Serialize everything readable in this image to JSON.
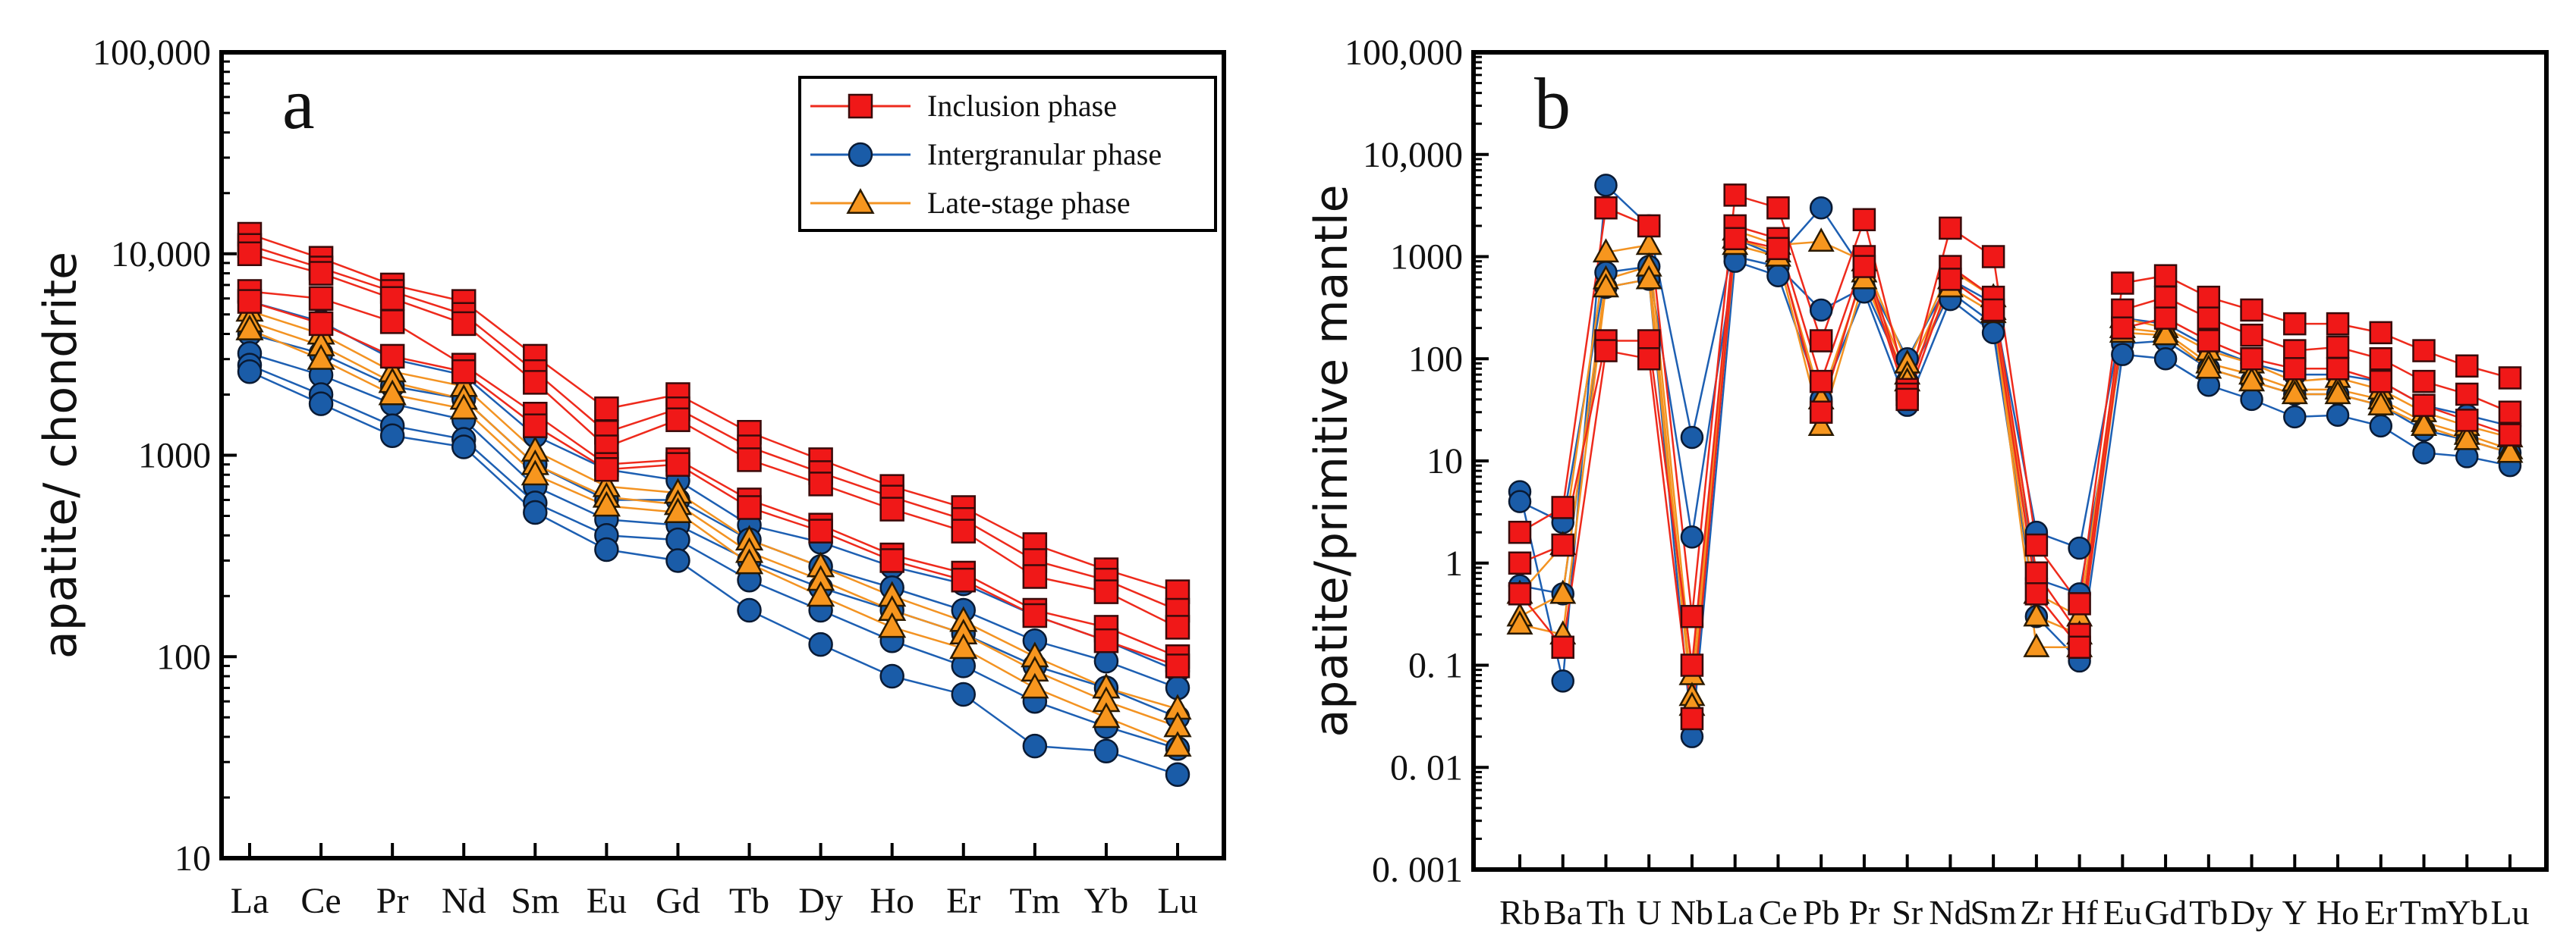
{
  "colors": {
    "inclusion": "#ee2a1c",
    "intergranular": "#1d5fb2",
    "late": "#f39322",
    "axis": "#000000"
  },
  "chart_data": [
    {
      "type": "line",
      "panel_label": "a",
      "title": "",
      "xlabel": "",
      "ylabel": "apatite/ chondrite",
      "yscale": "log",
      "ylim": [
        10,
        100000
      ],
      "yticks": [
        10,
        100,
        1000,
        10000,
        100000
      ],
      "ytick_labels": [
        "10",
        "100",
        "1000",
        "10,000",
        "100,000"
      ],
      "categories": [
        "La",
        "Ce",
        "Pr",
        "Nd",
        "Sm",
        "Eu",
        "Gd",
        "Tb",
        "Dy",
        "Ho",
        "Er",
        "Tm",
        "Yb",
        "Lu"
      ],
      "legend_position": "top-right",
      "legend": [
        {
          "group": "inclusion",
          "label": "Inclusion phase",
          "marker": "square"
        },
        {
          "group": "intergranular",
          "label": "Intergranular phase",
          "marker": "circle"
        },
        {
          "group": "late",
          "label": "Late-stage phase",
          "marker": "triangle"
        }
      ],
      "series": [
        {
          "group": "intergranular",
          "values": [
            5800,
            4600,
            3000,
            2500,
            1250,
            850,
            750,
            450,
            370,
            280,
            230,
            160,
            120,
            85
          ]
        },
        {
          "group": "intergranular",
          "values": [
            4000,
            3200,
            2200,
            1900,
            900,
            600,
            600,
            380,
            280,
            220,
            170,
            120,
            95,
            70
          ]
        },
        {
          "group": "intergranular",
          "values": [
            3200,
            2500,
            1800,
            1500,
            700,
            480,
            450,
            300,
            220,
            170,
            130,
            90,
            70,
            50
          ]
        },
        {
          "group": "intergranular",
          "values": [
            2800,
            2000,
            1400,
            1200,
            580,
            400,
            380,
            240,
            170,
            120,
            90,
            60,
            45,
            35
          ]
        },
        {
          "group": "intergranular",
          "values": [
            2600,
            1800,
            1250,
            1100,
            520,
            340,
            300,
            170,
            115,
            80,
            65,
            36,
            34,
            26
          ]
        },
        {
          "group": "late",
          "values": [
            5200,
            4000,
            2600,
            2200,
            1050,
            700,
            650,
            380,
            280,
            200,
            150,
            100,
            70,
            55
          ]
        },
        {
          "group": "late",
          "values": [
            4600,
            3500,
            2300,
            1900,
            900,
            620,
            570,
            330,
            240,
            170,
            130,
            85,
            60,
            45
          ]
        },
        {
          "group": "late",
          "values": [
            4200,
            3000,
            2000,
            1700,
            800,
            560,
            520,
            290,
            200,
            140,
            110,
            70,
            50,
            36
          ]
        },
        {
          "group": "inclusion",
          "values": [
            12500,
            9500,
            7000,
            5800,
            3100,
            1700,
            2000,
            1300,
            950,
            700,
            550,
            360,
            270,
            210
          ]
        },
        {
          "group": "inclusion",
          "values": [
            11000,
            8500,
            6500,
            5000,
            2600,
            1300,
            1700,
            1100,
            820,
            620,
            480,
            300,
            240,
            170
          ]
        },
        {
          "group": "inclusion",
          "values": [
            10000,
            8000,
            6000,
            4500,
            2300,
            1100,
            1500,
            950,
            720,
            540,
            420,
            250,
            210,
            140
          ]
        },
        {
          "group": "inclusion",
          "values": [
            6500,
            6000,
            4600,
            2800,
            1600,
            900,
            950,
            600,
            450,
            320,
            260,
            170,
            140,
            100
          ]
        },
        {
          "group": "inclusion",
          "values": [
            5800,
            4500,
            3100,
            2600,
            1400,
            850,
            900,
            550,
            420,
            300,
            240,
            160,
            120,
            90
          ]
        }
      ]
    },
    {
      "type": "line",
      "panel_label": "b",
      "title": "",
      "xlabel": "",
      "ylabel": "apatite/primitive mantle",
      "yscale": "log",
      "ylim": [
        0.001,
        100000
      ],
      "yticks": [
        0.001,
        0.01,
        0.1,
        1,
        10,
        100,
        1000,
        10000,
        100000
      ],
      "ytick_labels": [
        "0. 001",
        "0. 01",
        "0. 1",
        "1",
        "10",
        "100",
        "1000",
        "10,000",
        "100,000"
      ],
      "categories": [
        "Rb",
        "Ba",
        "Th",
        "U",
        "Nb",
        "La",
        "Ce",
        "Pb",
        "Pr",
        "Sr",
        "Nd",
        "Sm",
        "Zr",
        "Hf",
        "Eu",
        "Gd",
        "Tb",
        "Dy",
        "Y",
        "Ho",
        "Er",
        "Tm",
        "Yb",
        "Lu"
      ],
      "series": [
        {
          "group": "intergranular",
          "values": [
            5,
            0.07,
            5000,
            2000,
            17,
            1500,
            1000,
            3000,
            700,
            100,
            600,
            350,
            2,
            1.4,
            250,
            220,
            130,
            90,
            70,
            70,
            60,
            35,
            28,
            22
          ]
        },
        {
          "group": "intergranular",
          "values": [
            4,
            2.5,
            700,
            800,
            1.8,
            1000,
            800,
            300,
            500,
            60,
            450,
            220,
            0.7,
            0.5,
            140,
            150,
            80,
            60,
            45,
            45,
            35,
            20,
            16,
            12
          ]
        },
        {
          "group": "intergranular",
          "values": [
            0.6,
            0.5,
            500,
            600,
            0.02,
            900,
            650,
            40,
            450,
            35,
            380,
            180,
            0.3,
            0.11,
            110,
            100,
            55,
            40,
            27,
            28,
            22,
            12,
            11,
            9
          ]
        },
        {
          "group": "late",
          "values": [
            0.5,
            1.5,
            1100,
            1300,
            0.08,
            1800,
            1300,
            1400,
            900,
            90,
            750,
            400,
            0.5,
            0.3,
            250,
            200,
            120,
            90,
            60,
            65,
            50,
            30,
            22,
            17
          ]
        },
        {
          "group": "late",
          "values": [
            0.3,
            0.5,
            600,
            800,
            0.05,
            1500,
            1100,
            40,
            700,
            70,
            600,
            300,
            0.3,
            0.2,
            200,
            180,
            90,
            70,
            50,
            50,
            40,
            24,
            18,
            13
          ]
        },
        {
          "group": "late",
          "values": [
            0.25,
            0.2,
            500,
            600,
            0.04,
            1300,
            1000,
            22,
            600,
            60,
            500,
            280,
            0.15,
            0.15,
            180,
            170,
            80,
            60,
            45,
            45,
            35,
            22,
            16,
            12
          ]
        },
        {
          "group": "inclusion",
          "values": [
            2,
            3.5,
            3000,
            2000,
            0.3,
            4000,
            3000,
            150,
            2300,
            50,
            1900,
            1000,
            1.5,
            0.4,
            550,
            650,
            400,
            300,
            220,
            220,
            180,
            120,
            85,
            65
          ]
        },
        {
          "group": "inclusion",
          "values": [
            1,
            1.5,
            150,
            150,
            0.1,
            2000,
            1500,
            60,
            1000,
            45,
            800,
            400,
            0.8,
            0.2,
            300,
            400,
            250,
            170,
            120,
            130,
            100,
            60,
            45,
            30
          ]
        },
        {
          "group": "inclusion",
          "values": [
            0.5,
            0.15,
            120,
            100,
            0.03,
            1500,
            1200,
            30,
            800,
            40,
            600,
            300,
            0.5,
            0.15,
            200,
            250,
            150,
            100,
            80,
            80,
            60,
            35,
            25,
            18
          ]
        }
      ]
    }
  ]
}
